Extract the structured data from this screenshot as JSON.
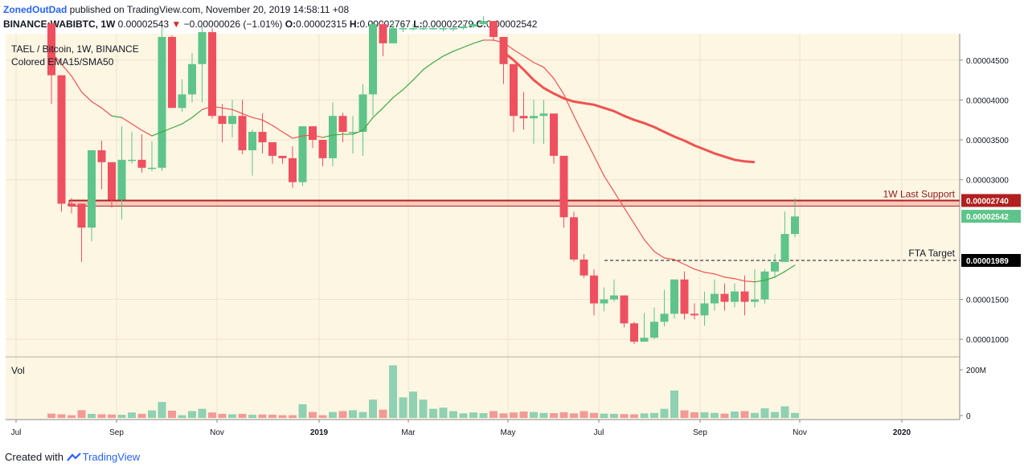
{
  "header": {
    "author": "ZonedOutDad",
    "published": "published on TradingView.com, November 20, 2019 14:58:11 +08",
    "symbol": "BINANCE:WABIBTC, 1W",
    "last": "0.00002543",
    "change": "−0.00000026 (−1.01%)",
    "open_label": "O:",
    "open": "0.00002315",
    "high_label": "H:",
    "high": "0.00002767",
    "low_label": "L:",
    "low": "0.00002279",
    "close_label": "C:",
    "close": "0.00002542"
  },
  "footer": {
    "created_with": "Created with",
    "brand": "TradingView"
  },
  "colors": {
    "background": "#fdf6e3",
    "up": "#5ec48a",
    "down": "#ee5060",
    "vol_up": "#8fd1b2",
    "vol_down": "#f39a96",
    "ema": "#3fa940",
    "ema_down": "#ef5350",
    "sma": "#ef5350",
    "support": "#b21f1f"
  },
  "chart_data": {
    "type": "candlestick",
    "title": "TAEL / Bitcoin, 1W, BINANCE",
    "subtitle": "Colored EMA15/SMA50",
    "interval": "1W",
    "x_tick_labels": [
      "Jul",
      "Sep",
      "Nov",
      "2019",
      "Mar",
      "May",
      "Jul",
      "Sep",
      "Nov",
      "2020"
    ],
    "y_tick_labels": [
      "0.00004500",
      "0.00004000",
      "0.00003500",
      "0.00003000",
      "0.00001500",
      "0.00001000"
    ],
    "ylim": [
      7.8e-06,
      4.83e-05
    ],
    "volume": {
      "label": "Vol",
      "ticks": [
        "200M",
        "0"
      ],
      "max": 260000000
    },
    "price_tags": [
      {
        "label": "0.00002740",
        "value": 2.74e-05,
        "style": "support"
      },
      {
        "label": "0.00002542",
        "value": 2.542e-05,
        "style": "last"
      },
      {
        "label": "0.00001989",
        "value": 1.989e-05,
        "style": "target"
      }
    ],
    "annotations": [
      {
        "text": "1W Last Support",
        "value": 2.74e-05
      },
      {
        "text": "FTA Target",
        "value": 1.989e-05
      }
    ],
    "support_zone": [
      2.67e-05,
      2.74e-05
    ],
    "candles": [
      [
        4.96,
        4.31,
        4.96,
        3.95
      ],
      [
        4.31,
        2.7,
        4.31,
        2.6
      ],
      [
        2.7,
        2.67,
        2.77,
        2.58
      ],
      [
        2.7,
        2.4,
        2.7,
        1.97
      ],
      [
        2.4,
        3.37,
        3.37,
        2.23
      ],
      [
        3.37,
        3.22,
        3.49,
        2.88
      ],
      [
        3.22,
        2.75,
        3.22,
        2.65
      ],
      [
        2.75,
        3.25,
        3.67,
        2.5
      ],
      [
        3.25,
        3.25,
        3.6,
        3.2
      ],
      [
        3.25,
        3.15,
        3.57,
        3.09
      ],
      [
        3.15,
        3.15,
        3.48,
        3.11
      ],
      [
        3.15,
        4.79,
        4.91,
        3.11
      ],
      [
        4.79,
        3.9,
        4.81,
        3.9
      ],
      [
        3.9,
        4.07,
        4.26,
        3.85
      ],
      [
        4.07,
        4.45,
        4.59,
        3.97
      ],
      [
        4.45,
        4.85,
        4.92,
        3.97
      ],
      [
        4.85,
        3.8,
        4.9,
        3.77
      ],
      [
        3.8,
        3.7,
        3.95,
        3.47
      ],
      [
        3.7,
        3.8,
        4.0,
        3.53
      ],
      [
        3.8,
        3.37,
        4.0,
        3.32
      ],
      [
        3.37,
        3.6,
        3.63,
        3.05
      ],
      [
        3.6,
        3.47,
        3.83,
        3.33
      ],
      [
        3.47,
        3.3,
        3.47,
        3.2
      ],
      [
        3.3,
        3.27,
        3.3,
        3.2
      ],
      [
        3.27,
        2.97,
        3.42,
        2.9
      ],
      [
        2.97,
        3.67,
        3.67,
        2.92
      ],
      [
        3.67,
        3.5,
        3.67,
        3.4
      ],
      [
        3.5,
        3.27,
        3.5,
        3.17
      ],
      [
        3.27,
        3.8,
        3.97,
        3.17
      ],
      [
        3.8,
        3.6,
        3.84,
        3.47
      ],
      [
        3.6,
        3.6,
        3.8,
        3.33
      ],
      [
        3.6,
        4.07,
        4.2,
        3.3
      ],
      [
        4.07,
        4.95,
        4.99,
        3.8
      ],
      [
        4.95,
        4.71,
        4.99,
        4.55
      ],
      [
        4.71,
        4.9,
        4.99,
        4.81
      ],
      [
        4.9,
        4.9,
        4.95,
        4.85
      ],
      [
        4.9,
        4.9,
        4.95,
        4.87
      ],
      [
        4.9,
        4.9,
        4.95,
        4.88
      ],
      [
        4.9,
        4.9,
        4.94,
        4.88
      ],
      [
        4.9,
        4.9,
        4.93,
        4.86
      ],
      [
        4.9,
        4.9,
        4.94,
        4.86
      ],
      [
        4.9,
        4.92,
        4.95,
        4.88
      ],
      [
        4.92,
        4.95,
        4.98,
        4.9
      ],
      [
        4.95,
        4.99,
        5.05,
        4.94
      ],
      [
        4.99,
        4.79,
        4.99,
        4.74
      ],
      [
        4.79,
        4.45,
        4.79,
        4.2
      ],
      [
        4.45,
        3.8,
        4.45,
        3.6
      ],
      [
        3.8,
        3.77,
        4.1,
        3.63
      ],
      [
        3.77,
        3.8,
        4.0,
        3.45
      ],
      [
        3.8,
        3.83,
        4.0,
        3.45
      ],
      [
        3.83,
        3.3,
        3.83,
        3.2
      ],
      [
        3.3,
        2.53,
        3.3,
        2.4
      ],
      [
        2.53,
        2.0,
        2.6,
        1.97
      ],
      [
        2.0,
        1.8,
        2.07,
        1.77
      ],
      [
        1.8,
        1.45,
        1.88,
        1.3
      ],
      [
        1.45,
        1.5,
        1.65,
        1.35
      ],
      [
        1.5,
        1.55,
        1.75,
        1.47
      ],
      [
        1.55,
        1.2,
        1.55,
        1.15
      ],
      [
        1.2,
        0.97,
        1.22,
        0.94
      ],
      [
        0.97,
        1.02,
        1.33,
        0.97
      ],
      [
        1.02,
        1.22,
        1.4,
        1.0
      ],
      [
        1.22,
        1.32,
        1.62,
        1.16
      ],
      [
        1.32,
        1.75,
        1.75,
        1.26
      ],
      [
        1.75,
        1.32,
        1.85,
        1.25
      ],
      [
        1.32,
        1.3,
        1.45,
        1.25
      ],
      [
        1.3,
        1.45,
        1.6,
        1.17
      ],
      [
        1.45,
        1.57,
        1.75,
        1.36
      ],
      [
        1.57,
        1.47,
        1.7,
        1.36
      ],
      [
        1.47,
        1.6,
        1.7,
        1.4
      ],
      [
        1.6,
        1.47,
        1.8,
        1.3
      ],
      [
        1.47,
        1.5,
        1.88,
        1.4
      ],
      [
        1.5,
        1.85,
        1.88,
        1.45
      ],
      [
        1.85,
        1.97,
        2.07,
        1.77
      ],
      [
        1.97,
        2.32,
        2.6,
        1.97
      ],
      [
        2.32,
        2.54,
        2.77,
        2.28
      ]
    ],
    "volumes": [
      19,
      16,
      12,
      34,
      18,
      16,
      15,
      14,
      24,
      18,
      33,
      70,
      32,
      12,
      30,
      40,
      24,
      18,
      16,
      18,
      14,
      15,
      14,
      12,
      12,
      60,
      26,
      12,
      26,
      30,
      34,
      26,
      80,
      36,
      230,
      90,
      115,
      80,
      40,
      45,
      30,
      20,
      24,
      21,
      30,
      20,
      24,
      28,
      26,
      22,
      21,
      25,
      20,
      30,
      22,
      19,
      18,
      17,
      16,
      20,
      22,
      40,
      120,
      33,
      25,
      25,
      22,
      19,
      28,
      30,
      22,
      42,
      26,
      51,
      22
    ],
    "ema15": [
      [
        4.6,
        4.45,
        4.3,
        4.1,
        3.98,
        3.9,
        3.8,
        3.78,
        3.7,
        3.62,
        3.55,
        3.6,
        3.65,
        3.7,
        3.78,
        3.88,
        3.92,
        3.9,
        3.88,
        3.83,
        3.78,
        3.75,
        3.68,
        3.6,
        3.52,
        3.55,
        3.56,
        3.53,
        3.56,
        3.57,
        3.57,
        3.62,
        3.78,
        3.9,
        4.03,
        4.13,
        4.25,
        4.38,
        4.47,
        4.55,
        4.61,
        4.66,
        4.71,
        4.75,
        4.75,
        4.72,
        4.63,
        4.55,
        4.47,
        4.41,
        4.27,
        4.07,
        3.8,
        3.55,
        3.3,
        3.05,
        2.85,
        2.65,
        2.45,
        2.25,
        2.1,
        2.02,
        2.0,
        1.94,
        1.88,
        1.84,
        1.82,
        1.78,
        1.76,
        1.73,
        1.72,
        1.74,
        1.78,
        1.85,
        1.93
      ],
      [
        "d",
        "d",
        "d",
        "d",
        "d",
        "d",
        "d",
        "u",
        "d",
        "d",
        "d",
        "u",
        "u",
        "u",
        "u",
        "u",
        "d",
        "d",
        "d",
        "d",
        "d",
        "d",
        "d",
        "d",
        "d",
        "d",
        "d",
        "d",
        "u",
        "u",
        "u",
        "u",
        "u",
        "u",
        "u",
        "u",
        "u",
        "u",
        "u",
        "u",
        "u",
        "u",
        "u",
        "u",
        "d",
        "d",
        "d",
        "d",
        "d",
        "d",
        "d",
        "d",
        "d",
        "d",
        "d",
        "d",
        "d",
        "d",
        "d",
        "d",
        "d",
        "d",
        "d",
        "d",
        "d",
        "d",
        "d",
        "d",
        "d",
        "d",
        "d",
        "u",
        "u",
        "u",
        "u"
      ]
    ],
    "sma50": {
      "start_index": 45,
      "values": [
        4.6,
        4.5,
        4.38,
        4.25,
        4.15,
        4.08,
        4.02,
        3.98,
        3.96,
        3.94,
        3.9,
        3.86,
        3.8,
        3.75,
        3.71,
        3.66,
        3.6,
        3.54,
        3.49,
        3.43,
        3.38,
        3.33,
        3.29,
        3.25,
        3.23,
        3.22
      ]
    }
  }
}
